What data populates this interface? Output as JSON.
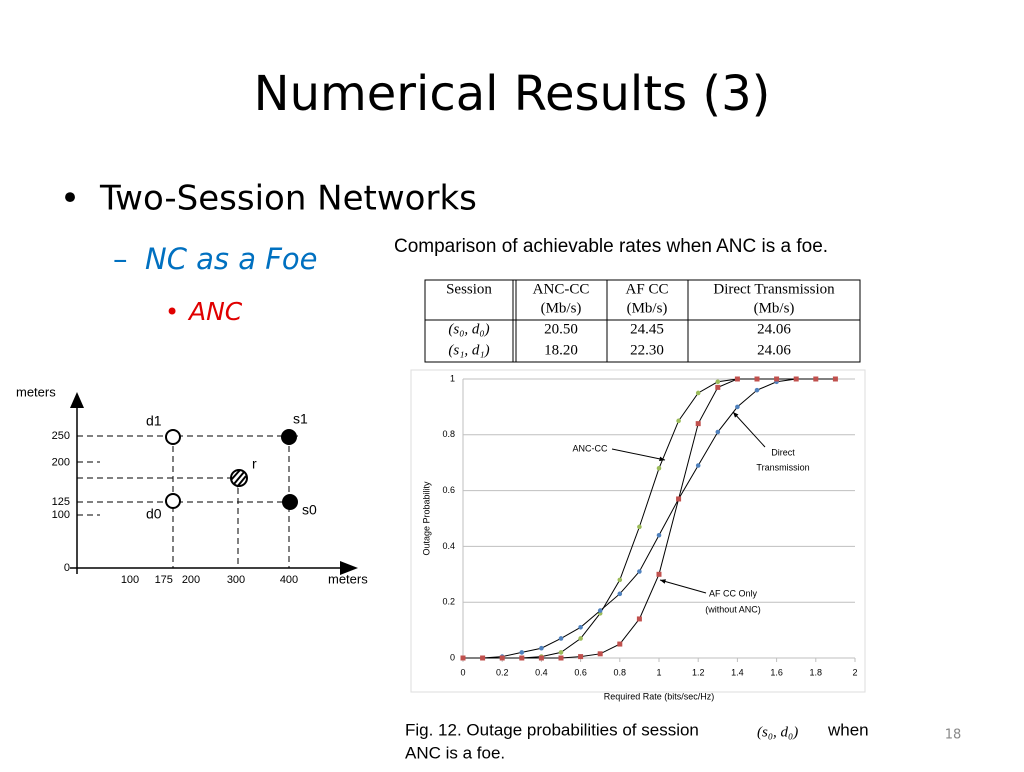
{
  "slide": {
    "title": "Numerical Results (3)",
    "bullet_1": "Two-Session Networks",
    "bullet_2": "NC as a Foe",
    "bullet_3": "ANC",
    "page_number": "18"
  },
  "table": {
    "caption": "Comparison of achievable rates when ANC is a foe.",
    "header": [
      [
        "Session"
      ],
      [
        "ANC-CC",
        "(Mb/s)"
      ],
      [
        "AF CC",
        "(Mb/s)"
      ],
      [
        "Direct Transmission",
        "(Mb/s)"
      ]
    ],
    "rows": [
      [
        "(s₀, d₀)",
        "20.50",
        "24.45",
        "24.06"
      ],
      [
        "(s₁, d₁)",
        "18.20",
        "22.30",
        "24.06"
      ]
    ]
  },
  "network": {
    "y_axis_label": "meters",
    "x_axis_label": "meters",
    "yticks": [
      0,
      100,
      125,
      200,
      250
    ],
    "xticks": [
      100,
      175,
      200,
      300,
      400
    ],
    "nodes": [
      "d1",
      "s1",
      "r",
      "d0",
      "s0"
    ]
  },
  "chart_data": {
    "type": "line",
    "xlabel": "Required Rate (bits/sec/Hz)",
    "ylabel": "Outage Probability",
    "x": [
      0,
      0.1,
      0.2,
      0.3,
      0.4,
      0.5,
      0.6,
      0.7,
      0.8,
      0.9,
      1.0,
      1.1,
      1.2,
      1.3,
      1.4,
      1.5,
      1.6,
      1.7,
      1.8,
      1.9
    ],
    "xlim": [
      0,
      2
    ],
    "ylim": [
      0,
      1
    ],
    "xticks": [
      0,
      0.2,
      0.4,
      0.6,
      0.8,
      1,
      1.2,
      1.4,
      1.6,
      1.8,
      2
    ],
    "yticks": [
      0,
      0.2,
      0.4,
      0.6,
      0.8,
      1
    ],
    "grid": true,
    "series": [
      {
        "name": "ANC-CC",
        "color": "#9bbb59",
        "values": [
          0,
          0,
          0,
          0,
          0.005,
          0.02,
          0.07,
          0.16,
          0.28,
          0.47,
          0.68,
          0.85,
          0.95,
          0.99,
          1,
          1,
          1,
          1,
          1,
          1
        ]
      },
      {
        "name": "Direct Transmission",
        "color": "#4f81bd",
        "values": [
          0,
          0,
          0.005,
          0.02,
          0.035,
          0.07,
          0.11,
          0.17,
          0.23,
          0.31,
          0.44,
          0.57,
          0.69,
          0.81,
          0.9,
          0.96,
          0.99,
          1,
          1,
          1
        ]
      },
      {
        "name": "AF CC Only",
        "color": "#c0504d",
        "values": [
          0,
          0,
          0,
          0,
          0,
          0,
          0.005,
          0.015,
          0.05,
          0.14,
          0.3,
          0.57,
          0.84,
          0.97,
          1,
          1,
          1,
          1,
          1,
          1
        ]
      }
    ],
    "annotations": [
      "ANC-CC",
      "Direct",
      "Transmission",
      "AF CC Only",
      "(without ANC)"
    ]
  },
  "figure_caption": {
    "text": "Fig. 12.  Outage probabilities of session",
    "math": "(s₀, d₀)",
    "after": "when",
    "line2": "ANC is a foe."
  }
}
